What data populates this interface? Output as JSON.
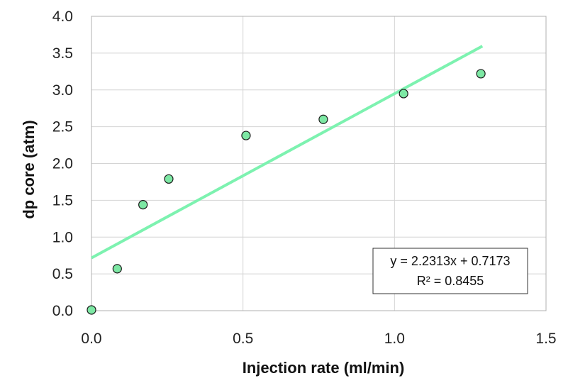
{
  "chart_data": {
    "type": "scatter",
    "title": "",
    "xlabel": "Injection rate (ml/min)",
    "ylabel": "dp core (atm)",
    "xlim": [
      0,
      1.5
    ],
    "ylim": [
      0,
      4
    ],
    "x_ticks": [
      "0.0",
      "0.5",
      "1.0",
      "1.5"
    ],
    "y_ticks": [
      "0.0",
      "0.5",
      "1.0",
      "1.5",
      "2.0",
      "2.5",
      "3.0",
      "3.5",
      "4.0"
    ],
    "x_tick_values": [
      0,
      0.5,
      1.0,
      1.5
    ],
    "y_tick_values": [
      0,
      0.5,
      1.0,
      1.5,
      2.0,
      2.5,
      3.0,
      3.5,
      4.0
    ],
    "grid": true,
    "series": [
      {
        "x": [
          0.0,
          0.085,
          0.17,
          0.255,
          0.51,
          0.765,
          1.03,
          1.285
        ],
        "y": [
          0.01,
          0.57,
          1.44,
          1.79,
          2.38,
          2.6,
          2.95,
          3.22
        ],
        "marker_color": "#7de8a4",
        "marker_edge": "#1a1a1a"
      }
    ],
    "trendline": {
      "type": "linear",
      "slope": 2.2313,
      "intercept": 0.7173,
      "x_range": [
        0,
        1.29
      ],
      "color": "#7df2b0",
      "equation_label": "y = 2.2313x  + 0.7173",
      "r2_label": "R² = 0.8455"
    }
  }
}
